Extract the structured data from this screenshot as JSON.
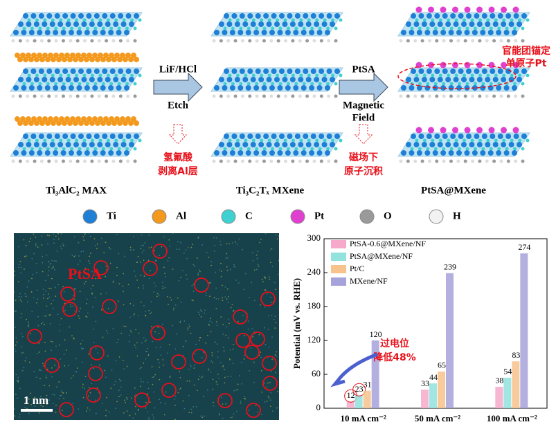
{
  "schematic": {
    "captions": [
      "Ti₃AlC₂ MAX",
      "Ti₃C₂Tₓ MXene",
      "PtSA@MXene"
    ],
    "step1": {
      "top": "LiF/HCl",
      "bottom": "Etch",
      "note": [
        "氢氟酸",
        "剥离Al层"
      ]
    },
    "step2": {
      "top": "PtSA",
      "bottom": [
        "Magnetic",
        "Field"
      ],
      "note": [
        "磁场下",
        "原子沉积"
      ]
    },
    "callout": [
      "官能团锚定",
      "单原子Pt"
    ]
  },
  "atoms": [
    {
      "name": "Ti",
      "color": "#1e7fd6"
    },
    {
      "name": "Al",
      "color": "#f39a1e"
    },
    {
      "name": "C",
      "color": "#3fd0d0"
    },
    {
      "name": "Pt",
      "color": "#e040d0"
    },
    {
      "name": "O",
      "color": "#9a9a9a"
    },
    {
      "name": "H",
      "color": "#f2f2f2"
    }
  ],
  "image": {
    "label": "PtSA",
    "scale": "1 nm"
  },
  "chart_data": {
    "type": "bar",
    "ylabel": "Potential (mV vs. RHE)",
    "categories": [
      "10 mA cm⁻²",
      "50 mA cm⁻²",
      "100 mA cm⁻²"
    ],
    "series": [
      {
        "name": "PtSA-0.6@MXene/NF",
        "color": "#f6a9c9",
        "values": [
          12,
          33,
          38
        ]
      },
      {
        "name": "PtSA@MXene/NF",
        "color": "#92e2de",
        "values": [
          23,
          44,
          54
        ]
      },
      {
        "name": "Pt/C",
        "color": "#f7c28c",
        "values": [
          31,
          65,
          83
        ]
      },
      {
        "name": "MXene/NF",
        "color": "#a6a2da",
        "values": [
          120,
          239,
          274
        ]
      }
    ],
    "ylim": [
      0,
      300
    ],
    "yticks": [
      0,
      60,
      120,
      180,
      240,
      300
    ],
    "legend": "upper left",
    "annotation": [
      "过电位",
      "降低48%"
    ]
  }
}
